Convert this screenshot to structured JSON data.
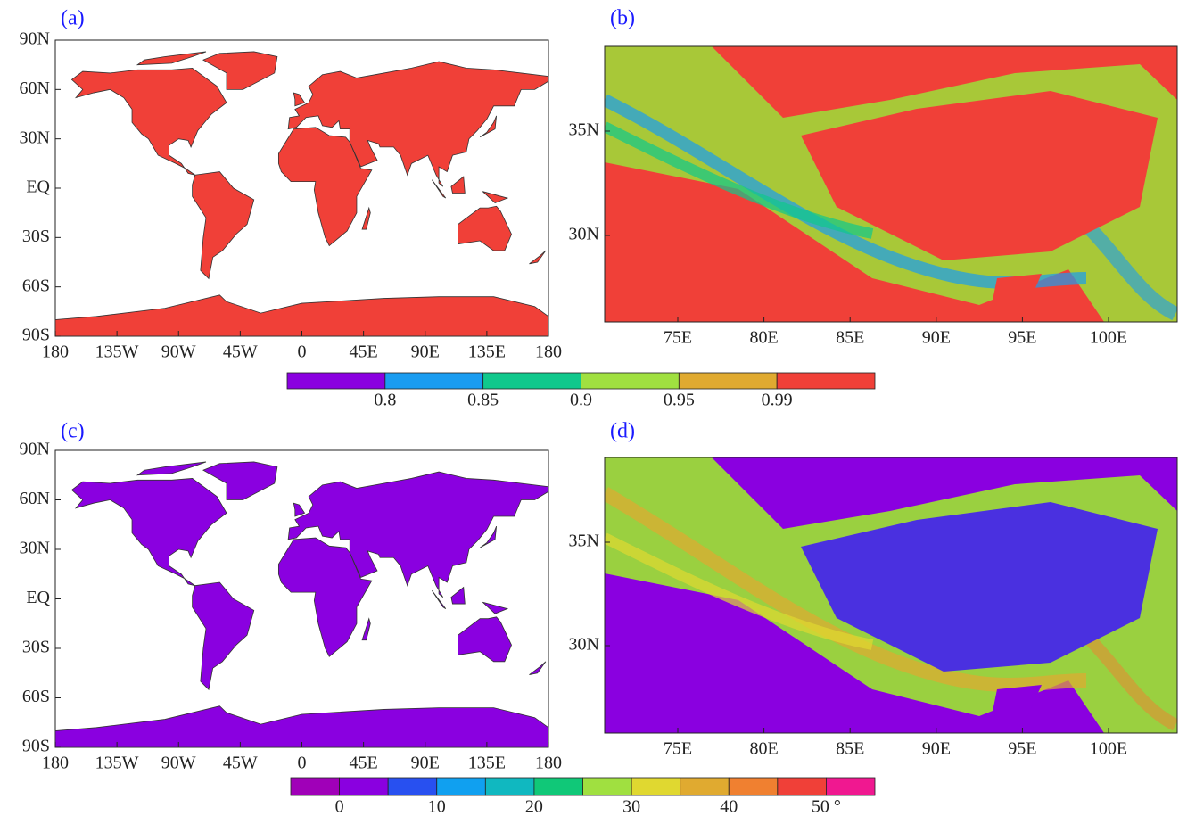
{
  "panels": [
    {
      "label": "(a)",
      "yticks": [
        "90N",
        "60N",
        "30N",
        "EQ",
        "30S",
        "60S",
        "90S"
      ],
      "xticks": [
        "180",
        "135W",
        "90W",
        "45W",
        "0",
        "45E",
        "90E",
        "135E",
        "180"
      ]
    },
    {
      "label": "(b)",
      "yticks": [
        "35N",
        "30N"
      ],
      "xticks": [
        "75E",
        "80E",
        "85E",
        "90E",
        "95E",
        "100E"
      ]
    },
    {
      "label": "(c)",
      "yticks": [
        "90N",
        "60N",
        "30N",
        "EQ",
        "30S",
        "60S",
        "90S"
      ],
      "xticks": [
        "180",
        "135W",
        "90W",
        "45W",
        "0",
        "45E",
        "90E",
        "135E",
        "180"
      ]
    },
    {
      "label": "(d)",
      "yticks": [
        "35N",
        "30N"
      ],
      "xticks": [
        "75E",
        "80E",
        "85E",
        "90E",
        "95E",
        "100E"
      ]
    }
  ],
  "colorbars": [
    {
      "colors": [
        "#8a00e0",
        "#1a9cf0",
        "#10c88c",
        "#a0e040",
        "#e0aa30",
        "#f04038"
      ],
      "labels": [
        "0.8",
        "0.85",
        "0.9",
        "0.95",
        "0.99"
      ]
    },
    {
      "colors": [
        "#a000b8",
        "#8a00e0",
        "#2850f0",
        "#10a0f0",
        "#10b8c0",
        "#10c878",
        "#a0e040",
        "#e0d830",
        "#e0aa30",
        "#f08030",
        "#f04038",
        "#f01890"
      ],
      "labels": [
        "0",
        "10",
        "20",
        "30",
        "40",
        "50 °"
      ]
    }
  ]
}
